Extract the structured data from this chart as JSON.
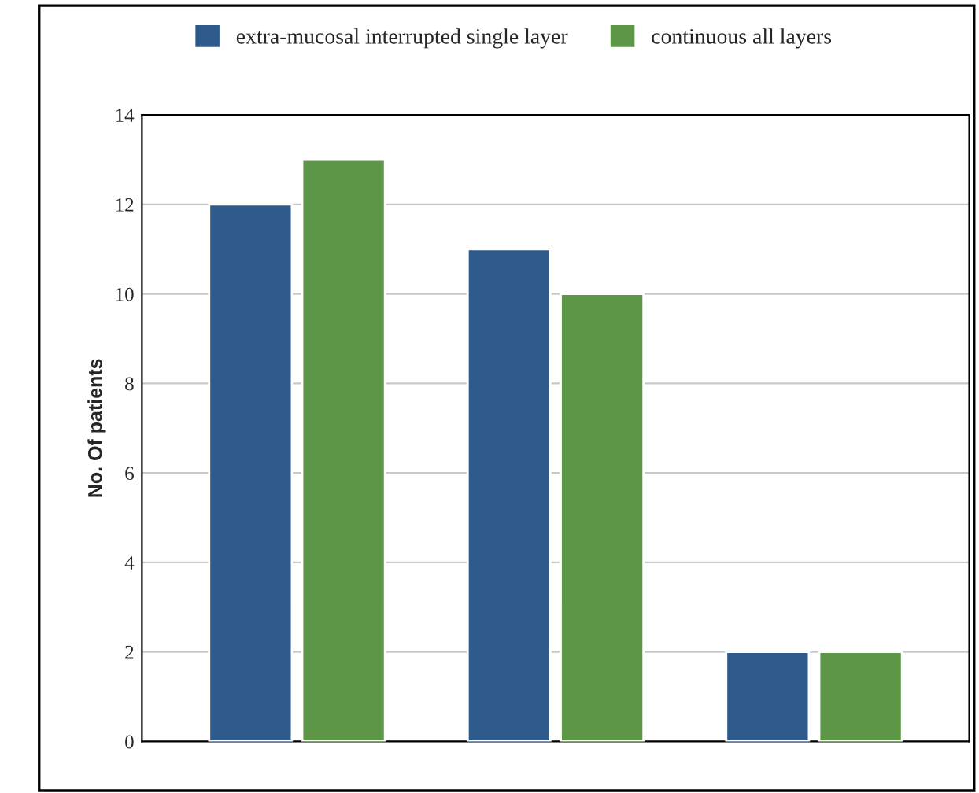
{
  "chart_data": {
    "type": "bar",
    "ylabel": "No. Of patients",
    "categories": [
      null,
      null,
      null
    ],
    "series": [
      {
        "name": "extra-mucosal interrupted single layer",
        "color": "#2e5a8c",
        "values": [
          12,
          11,
          2
        ]
      },
      {
        "name": "continuous all layers",
        "color": "#5e9648",
        "values": [
          13,
          10,
          2
        ]
      }
    ],
    "ylim": [
      0,
      14
    ],
    "yticks": [
      0,
      2,
      4,
      6,
      8,
      10,
      12,
      14
    ],
    "grid": "y",
    "legend": "top"
  }
}
